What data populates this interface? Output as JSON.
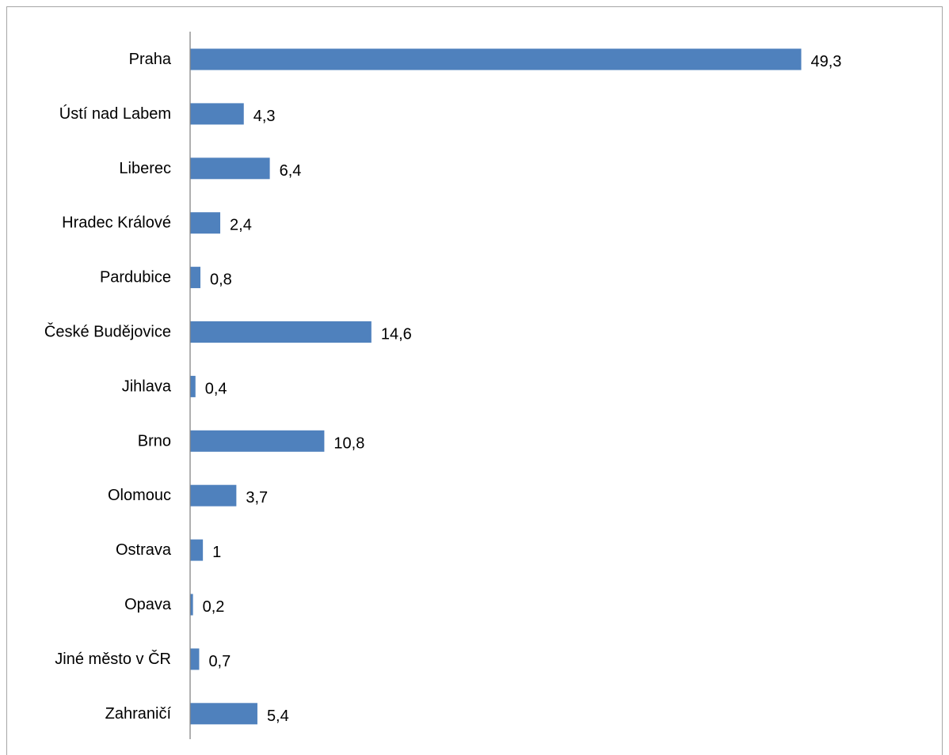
{
  "chart_data": {
    "type": "bar",
    "orientation": "horizontal",
    "categories": [
      "Praha",
      "Ústí nad Labem",
      "Liberec",
      "Hradec Králové",
      "Pardubice",
      "České Budějovice",
      "Jihlava",
      "Brno",
      "Olomouc",
      "Ostrava",
      "Opava",
      "Jiné město v ČR",
      "Zahraničí"
    ],
    "values": [
      49.3,
      4.3,
      6.4,
      2.4,
      0.8,
      14.6,
      0.4,
      10.8,
      3.7,
      1,
      0.2,
      0.7,
      5.4
    ],
    "value_labels": [
      "49,3",
      "4,3",
      "6,4",
      "2,4",
      "0,8",
      "14,6",
      "0,4",
      "10,8",
      "3,7",
      "1",
      "0,2",
      "0,7",
      "5,4"
    ],
    "xlim": [
      0,
      50
    ],
    "grid": false,
    "legend": "none",
    "bar_color": "#4f81bd",
    "axis_color": "#868686"
  }
}
